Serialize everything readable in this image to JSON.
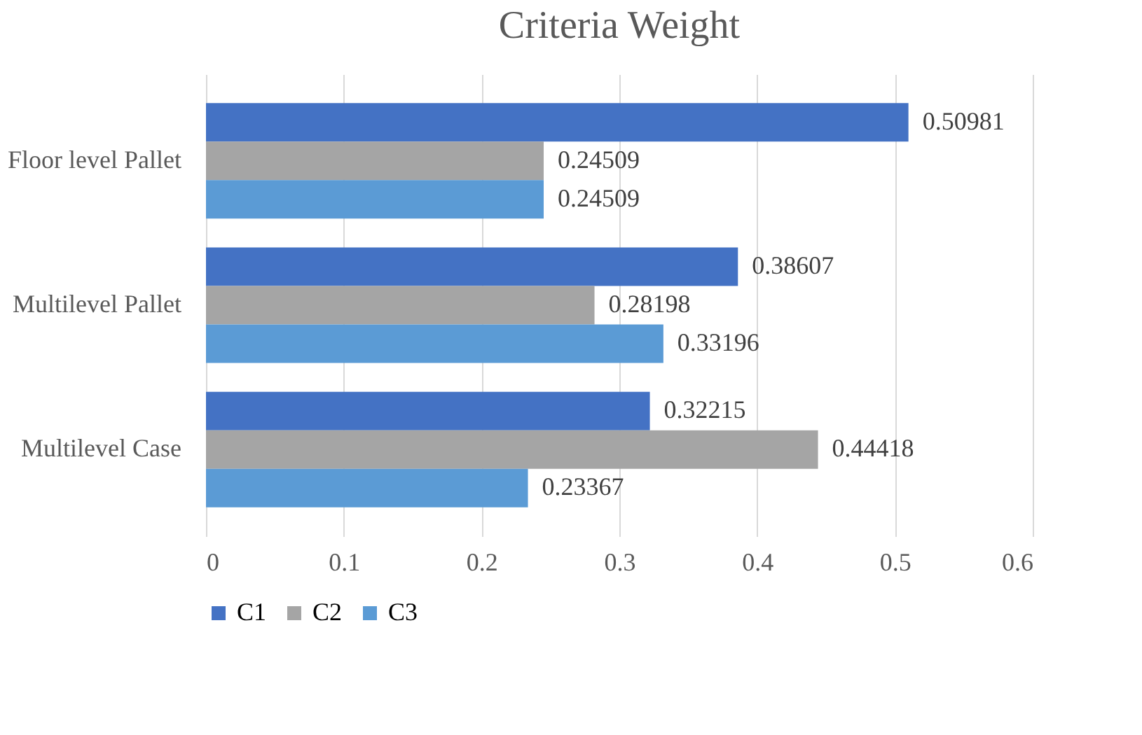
{
  "chart_data": {
    "type": "bar",
    "orientation": "horizontal",
    "title": "Criteria Weight",
    "categories": [
      "Floor level Pallet",
      "Multilevel Pallet",
      "Multilevel Case"
    ],
    "series": [
      {
        "name": "C1",
        "color": "#4472c4",
        "values": [
          0.50981,
          0.38607,
          0.32215
        ]
      },
      {
        "name": "C2",
        "color": "#a5a5a5",
        "values": [
          0.24509,
          0.28198,
          0.44418
        ]
      },
      {
        "name": "C3",
        "color": "#5b9bd5",
        "values": [
          0.24509,
          0.33196,
          0.23367
        ]
      }
    ],
    "xlim": [
      0,
      0.6
    ],
    "xticks": [
      0,
      0.1,
      0.2,
      0.3,
      0.4,
      0.5,
      0.6
    ],
    "grid": "x",
    "legend": "bottom",
    "data_labels": true
  }
}
